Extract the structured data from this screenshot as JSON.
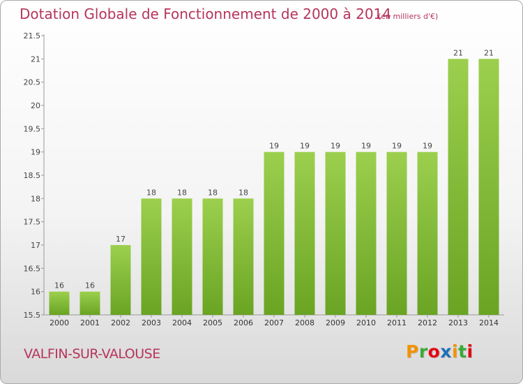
{
  "header": {
    "title": "Dotation Globale de Fonctionnement de 2000 à 2014",
    "subtitle": "(en milliers d'€)"
  },
  "footer": {
    "commune": "VALFIN-SUR-VALOUSE",
    "logo_letters": [
      "P",
      "r",
      "o",
      "x",
      "i",
      "t",
      "i"
    ],
    "logo_colors": [
      "#f39200",
      "#3aaa35",
      "#e30613",
      "#1d71b8",
      "#f39200",
      "#3aaa35",
      "#e30613"
    ]
  },
  "chart_data": {
    "type": "bar",
    "title": "Dotation Globale de Fonctionnement de 2000 à 2014",
    "subtitle": "(en milliers d'€)",
    "categories": [
      "2000",
      "2001",
      "2002",
      "2003",
      "2004",
      "2005",
      "2006",
      "2007",
      "2008",
      "2009",
      "2010",
      "2011",
      "2012",
      "2013",
      "2014"
    ],
    "values": [
      16,
      16,
      17,
      18,
      18,
      18,
      18,
      19,
      19,
      19,
      19,
      19,
      19,
      21,
      21
    ],
    "data_labels": [
      "16",
      "16",
      "17",
      "18",
      "18",
      "18",
      "18",
      "19",
      "19",
      "19",
      "19",
      "19",
      "19",
      "21",
      "21"
    ],
    "ylim": [
      15.5,
      21.5
    ],
    "yticks": [
      "15.5",
      "16",
      "16.5",
      "17",
      "17.5",
      "18",
      "18.5",
      "19",
      "19.5",
      "20",
      "20.5",
      "21",
      "21.5"
    ],
    "grid": false,
    "bar_color": "#8cc63f",
    "bar_color_dark": "#6aa423"
  }
}
